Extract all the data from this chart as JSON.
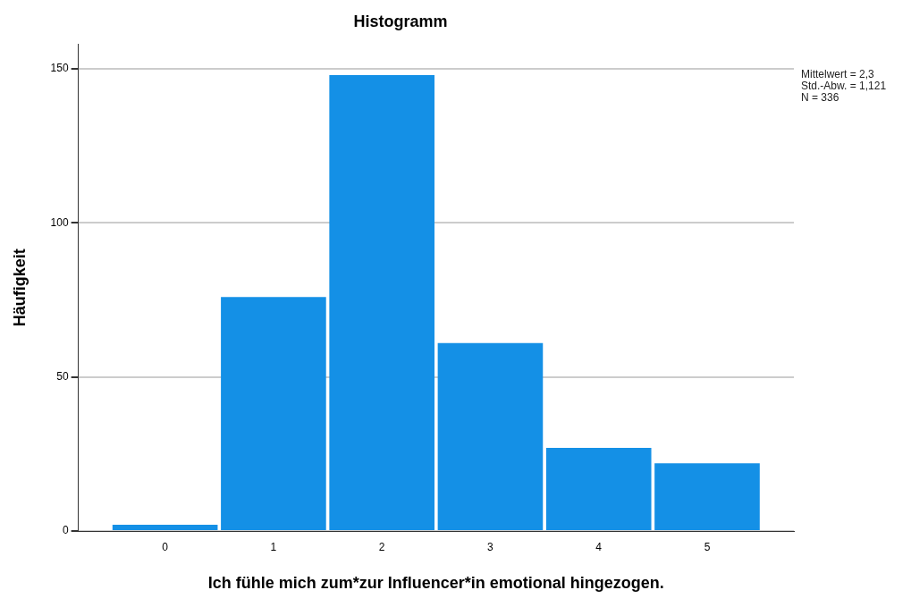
{
  "chart_data": {
    "type": "histogram",
    "title": "Histogramm",
    "xlabel": "Ich fühle mich zum*zur Influencer*in emotional hingezogen.",
    "ylabel": "Häufigkeit",
    "bins": [
      -0.5,
      0.5,
      1.5,
      2.5,
      3.5,
      4.5,
      5.5
    ],
    "values": [
      2,
      76,
      148,
      61,
      27,
      22
    ],
    "color": "#1490e6",
    "xlim": [
      -0.8,
      5.8
    ],
    "xticks": [
      0,
      1,
      2,
      3,
      4,
      5
    ],
    "ylim": [
      0,
      158
    ],
    "yticks": [
      0,
      50,
      100,
      150
    ],
    "grid": "y",
    "legend": false,
    "annotations": [
      "Mittelwert = 2,3",
      "Std.-Abw. = 1,121",
      "N = 336"
    ]
  }
}
